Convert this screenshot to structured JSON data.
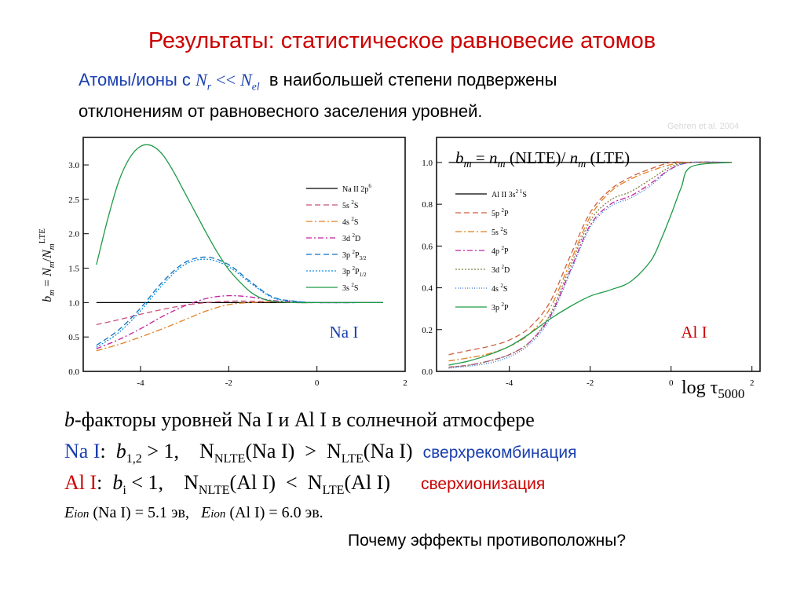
{
  "title": "Результаты: статистическое равновесие атомов",
  "intro": {
    "prefix": "Атомы/ионы с",
    "formula_nr": "N",
    "formula_nr_sub": "r",
    "formula_op": "<<",
    "formula_nel": "N",
    "formula_nel_sub": "el",
    "line1_rest": "в наибольшей степени подвержены",
    "line2": "отклонениям от равновесного заселения уровней."
  },
  "credit": "Gehren et al. 2004",
  "colors": {
    "title": "#cc0000",
    "intro_blue": "#1a3fb0",
    "black": "#000000",
    "red": "#cc0000",
    "blue": "#1a3fb0"
  },
  "chart_data": [
    {
      "type": "line",
      "panel_label": "Na I",
      "ylabel": "b_m = N_m/N_m^LTE",
      "xlim": [
        -5.3,
        2
      ],
      "ylim": [
        0,
        3.4
      ],
      "xticks": [
        "-4",
        "-2",
        "0",
        "2"
      ],
      "xtick_values": [
        -4,
        -2,
        0,
        2
      ],
      "yticks": [
        "0.0",
        "0.5",
        "1.0",
        "1.5",
        "2.0",
        "2.5",
        "3.0"
      ],
      "ytick_values": [
        0,
        0.5,
        1,
        1.5,
        2,
        2.5,
        3
      ],
      "legend_position": "top-right",
      "series": [
        {
          "name": "Na II 2p6",
          "label_main": "Na II 2p",
          "label_sup": "6",
          "label_sub": "",
          "color": "#000000",
          "dash": "",
          "x": [
            -5,
            -4,
            -3,
            -2,
            -1,
            0,
            1,
            1.5
          ],
          "y": [
            1.0,
            1.0,
            1.0,
            1.0,
            1.0,
            1.0,
            1.0,
            1.0
          ]
        },
        {
          "name": "5s 2S",
          "label_main": "5s ",
          "label_sup": "2",
          "label_tail": "S",
          "label_sub": "",
          "color": "#c8507a",
          "dash": "7,4",
          "x": [
            -5,
            -4.5,
            -4,
            -3.5,
            -3,
            -2.5,
            -2,
            -1.5,
            -1,
            -0.5,
            0,
            1,
            1.5
          ],
          "y": [
            0.68,
            0.75,
            0.83,
            0.9,
            0.96,
            1.0,
            1.02,
            1.02,
            1.01,
            1.0,
            1.0,
            1.0,
            1.0
          ]
        },
        {
          "name": "4s 2S",
          "label_main": "4s ",
          "label_sup": "2",
          "label_tail": "S",
          "label_sub": "",
          "color": "#e08020",
          "dash": "8,3,2,3",
          "x": [
            -5,
            -4.5,
            -4,
            -3.5,
            -3,
            -2.5,
            -2,
            -1.5,
            -1,
            -0.5,
            0,
            1,
            1.5
          ],
          "y": [
            0.3,
            0.39,
            0.5,
            0.62,
            0.75,
            0.88,
            0.97,
            1.0,
            1.01,
            1.0,
            1.0,
            1.0,
            1.0
          ]
        },
        {
          "name": "3d 2D",
          "label_main": "3d ",
          "label_sup": "2",
          "label_tail": "D",
          "label_sub": "",
          "color": "#c020a0",
          "dash": "7,3,2,3",
          "x": [
            -5,
            -4.5,
            -4,
            -3.5,
            -3,
            -2.5,
            -2,
            -1.5,
            -1,
            -0.5,
            0,
            1,
            1.5
          ],
          "y": [
            0.33,
            0.46,
            0.62,
            0.8,
            0.95,
            1.06,
            1.1,
            1.08,
            1.03,
            1.01,
            1.0,
            1.0,
            1.0
          ]
        },
        {
          "name": "3p 2P3/2",
          "label_main": "3p ",
          "label_sup": "2",
          "label_tail": "P",
          "label_sub": "3/2",
          "color": "#1070c0",
          "dash": "7,4",
          "x": [
            -5,
            -4.5,
            -4,
            -3.5,
            -3,
            -2.5,
            -2,
            -1.5,
            -1,
            -0.5,
            0,
            1,
            1.5
          ],
          "y": [
            0.38,
            0.6,
            0.92,
            1.3,
            1.58,
            1.66,
            1.55,
            1.3,
            1.08,
            1.02,
            1.0,
            1.0,
            1.0
          ]
        },
        {
          "name": "3p 2P1/2",
          "label_main": "3p ",
          "label_sup": "2",
          "label_tail": "P",
          "label_sub": "1/2",
          "color": "#1090e0",
          "dash": "2,2",
          "x": [
            -5,
            -4.5,
            -4,
            -3.5,
            -3,
            -2.5,
            -2,
            -1.5,
            -1,
            -0.5,
            0,
            1,
            1.5
          ],
          "y": [
            0.35,
            0.56,
            0.88,
            1.26,
            1.55,
            1.63,
            1.52,
            1.28,
            1.07,
            1.02,
            1.0,
            1.0,
            1.0
          ]
        },
        {
          "name": "3s 2S",
          "label_main": "3s ",
          "label_sup": "2",
          "label_tail": "S",
          "label_sub": "",
          "color": "#1e9a46",
          "dash": "",
          "x": [
            -5,
            -4.75,
            -4.5,
            -4.25,
            -4,
            -3.75,
            -3.5,
            -3.25,
            -3,
            -2.75,
            -2.5,
            -2.25,
            -2,
            -1.75,
            -1.5,
            -1.25,
            -1,
            -0.5,
            0,
            1,
            1.5
          ],
          "y": [
            1.55,
            2.2,
            2.75,
            3.1,
            3.27,
            3.28,
            3.15,
            2.9,
            2.6,
            2.3,
            2.0,
            1.72,
            1.48,
            1.3,
            1.15,
            1.06,
            1.02,
            1.0,
            1.0,
            1.0,
            1.0
          ]
        }
      ]
    },
    {
      "type": "line",
      "panel_label": "Al I",
      "title": "b_m = n_m (NLTE)/ n_m (LTE)",
      "xlabel": "log τ5000",
      "xlim": [
        -5.8,
        2.2
      ],
      "ylim": [
        0,
        1.12
      ],
      "xticks": [
        "-4",
        "-2",
        "0",
        "2"
      ],
      "xtick_values": [
        -4,
        -2,
        0,
        2
      ],
      "yticks": [
        "0.0",
        "0.2",
        "0.4",
        "0.6",
        "0.8",
        "1.0"
      ],
      "ytick_values": [
        0,
        0.2,
        0.4,
        0.6,
        0.8,
        1.0
      ],
      "legend_position": "top-left",
      "series": [
        {
          "name": "Al II 3s2 1S",
          "label_main": "Al II 3s",
          "label_sup": "2 1",
          "label_tail": "S",
          "label_sub": "",
          "color": "#000000",
          "dash": "",
          "x": [
            -5.5,
            -4,
            -2,
            0,
            1,
            1.5
          ],
          "y": [
            1.0,
            1.0,
            1.0,
            1.0,
            1.0,
            1.0
          ]
        },
        {
          "name": "5p 2P",
          "label_main": "5p ",
          "label_sup": "2",
          "label_tail": "P",
          "label_sub": "",
          "color": "#d06040",
          "dash": "7,4",
          "x": [
            -5.5,
            -5,
            -4.5,
            -4,
            -3.5,
            -3,
            -2.5,
            -2,
            -1.5,
            -1,
            -0.5,
            0,
            0.5,
            1.5
          ],
          "y": [
            0.08,
            0.1,
            0.12,
            0.15,
            0.21,
            0.33,
            0.55,
            0.76,
            0.87,
            0.93,
            0.97,
            1.0,
            1.0,
            1.0
          ]
        },
        {
          "name": "5s 2S",
          "label_main": "5s ",
          "label_sup": "2",
          "label_tail": "S",
          "label_sub": "",
          "color": "#e08020",
          "dash": "8,3,2,3",
          "x": [
            -5.5,
            -5,
            -4.5,
            -4,
            -3.5,
            -3,
            -2.5,
            -2,
            -1.5,
            -1,
            -0.5,
            0,
            0.5,
            1.5
          ],
          "y": [
            0.05,
            0.065,
            0.085,
            0.12,
            0.18,
            0.3,
            0.52,
            0.74,
            0.86,
            0.92,
            0.96,
            0.99,
            1.0,
            1.0
          ]
        },
        {
          "name": "4p 2P",
          "label_main": "4p ",
          "label_sup": "2",
          "label_tail": "P",
          "label_sub": "",
          "color": "#c020a0",
          "dash": "7,3,2,3",
          "x": [
            -5.5,
            -5,
            -4.5,
            -4,
            -3.5,
            -3,
            -2.5,
            -2,
            -1.5,
            -1,
            -0.5,
            0,
            0.5,
            1.5
          ],
          "y": [
            0.02,
            0.03,
            0.05,
            0.08,
            0.14,
            0.26,
            0.48,
            0.7,
            0.8,
            0.84,
            0.9,
            0.97,
            1.0,
            1.0
          ]
        },
        {
          "name": "3d 2D",
          "label_main": "3d ",
          "label_sup": "2",
          "label_tail": "D",
          "label_sub": "",
          "color": "#808040",
          "dash": "2,2",
          "x": [
            -5.5,
            -5,
            -4.5,
            -4,
            -3.5,
            -3,
            -2.5,
            -2,
            -1.5,
            -1,
            -0.5,
            0,
            0.5,
            1.5
          ],
          "y": [
            0.02,
            0.03,
            0.05,
            0.08,
            0.14,
            0.27,
            0.5,
            0.72,
            0.82,
            0.86,
            0.92,
            0.98,
            1.0,
            1.0
          ]
        },
        {
          "name": "4s 2S",
          "label_main": "4s ",
          "label_sup": "2",
          "label_tail": "S",
          "label_sub": "",
          "color": "#3070d0",
          "dash": "1,2",
          "x": [
            -5.5,
            -5,
            -4.5,
            -4,
            -3.5,
            -3,
            -2.5,
            -2,
            -1.5,
            -1,
            -0.5,
            0,
            0.5,
            1.5
          ],
          "y": [
            0.015,
            0.025,
            0.04,
            0.07,
            0.13,
            0.25,
            0.47,
            0.69,
            0.79,
            0.83,
            0.89,
            0.97,
            1.0,
            1.0
          ]
        },
        {
          "name": "3p 2P",
          "label_main": "3p ",
          "label_sup": "2",
          "label_tail": "P",
          "label_sub": "",
          "color": "#1e9a46",
          "dash": "",
          "x": [
            -5.5,
            -5,
            -4.5,
            -4,
            -3.5,
            -3,
            -2.5,
            -2,
            -1.5,
            -1,
            -0.5,
            -0.25,
            0,
            0.25,
            0.5,
            1.5
          ],
          "y": [
            0.03,
            0.05,
            0.08,
            0.12,
            0.18,
            0.25,
            0.31,
            0.36,
            0.39,
            0.43,
            0.53,
            0.63,
            0.75,
            0.88,
            0.98,
            1.0
          ]
        }
      ]
    }
  ],
  "bullets": {
    "line1": "b-факторы уровней Na I и Al I в солнечной атмосфере",
    "line1_b": "b",
    "line1_rest": "-факторы уровней Na I и Al I в солнечной атмосфере",
    "na_label": "Na I",
    "na_b": "b",
    "na_b_sub": "1,2",
    "na_ineq": " > 1,",
    "na_n1": "N",
    "na_n1_sub": "NLTE",
    "na_n1_arg": "(Na I)",
    "na_op": ">",
    "na_n2": "N",
    "na_n2_sub": "LTE",
    "na_n2_arg": "(Na I)",
    "na_effect": "сверхрекомбинация",
    "al_label": "Al I",
    "al_b": "b",
    "al_b_sub": "i",
    "al_ineq": " < 1,",
    "al_n1": "N",
    "al_n1_sub": "NLTE",
    "al_n1_arg": "(Al I)",
    "al_op": "<",
    "al_n2": "N",
    "al_n2_sub": "LTE",
    "al_n2_arg": "(Al I)",
    "al_effect": "сверхионизация",
    "eion_e1": "E",
    "eion_e1_sub": "ion",
    "eion_na": " (Na I) = 5.1 эв,",
    "eion_e2": "E",
    "eion_e2_sub": "ion",
    "eion_al": " (Al I) = 6.0 эв."
  },
  "question": "Почему эффекты противоположны?"
}
